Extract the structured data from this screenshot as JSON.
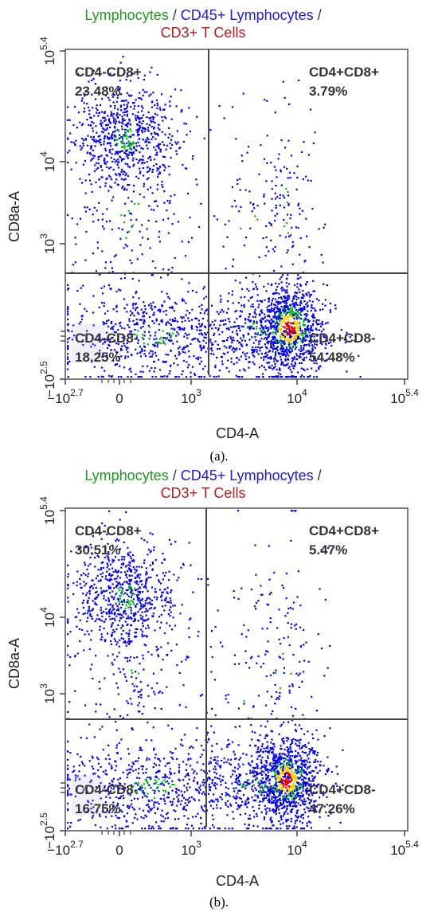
{
  "chart_data": [
    {
      "type": "scatter",
      "panel": "(a).",
      "title": {
        "line1": [
          {
            "text": "Lymphocytes",
            "color": "#1f9a1f"
          },
          {
            "text": " / ",
            "color": "#333333"
          },
          {
            "text": "CD45+ Lymphocytes",
            "color": "#1a1ae0"
          },
          {
            "text": " /",
            "color": "#333333"
          }
        ],
        "line2": [
          {
            "text": "CD3+ T Cells",
            "color": "#b51e1e"
          }
        ]
      },
      "xlabel": "CD4-A",
      "ylabel": "CD8a-A",
      "x_scale": "biexponential",
      "y_scale": "biexponential",
      "x_ticks": [
        "−10",
        "0",
        "10",
        "10",
        "10"
      ],
      "x_tick_exponents": [
        "2.7",
        "",
        "3",
        "4",
        "5.4"
      ],
      "y_ticks": [
        "−10",
        "10",
        "10",
        "10"
      ],
      "y_tick_exponents": [
        "2.5",
        "3",
        "4",
        "5.4"
      ],
      "quadrants": [
        {
          "name": "CD4-CD8+",
          "percent": "23.48%",
          "position": "top-left"
        },
        {
          "name": "CD4+CD8+",
          "percent": "3.79%",
          "position": "top-right"
        },
        {
          "name": "CD4-CD8-",
          "percent": "18.25%",
          "position": "bottom-left"
        },
        {
          "name": "CD4+CD8-",
          "percent": "54.48%",
          "position": "bottom-right"
        }
      ],
      "density_colors": [
        "#0000ee",
        "#00c000",
        "#ffcc00",
        "#e60000"
      ]
    },
    {
      "type": "scatter",
      "panel": "(b).",
      "title": {
        "line1": [
          {
            "text": "Lymphocytes",
            "color": "#1f9a1f"
          },
          {
            "text": " / ",
            "color": "#333333"
          },
          {
            "text": "CD45+ Lymphocytes",
            "color": "#1a1ae0"
          },
          {
            "text": " /",
            "color": "#333333"
          }
        ],
        "line2": [
          {
            "text": "CD3+ T Cells",
            "color": "#b51e1e"
          }
        ]
      },
      "xlabel": "CD4-A",
      "ylabel": "CD8a-A",
      "x_scale": "biexponential",
      "y_scale": "biexponential",
      "x_ticks": [
        "−10",
        "0",
        "10",
        "10",
        "10"
      ],
      "x_tick_exponents": [
        "2.7",
        "",
        "3",
        "4",
        "5.4"
      ],
      "y_ticks": [
        "−10",
        "10",
        "10",
        "10"
      ],
      "y_tick_exponents": [
        "2.5",
        "3",
        "4",
        "5.4"
      ],
      "quadrants": [
        {
          "name": "CD4-CD8+",
          "percent": "30.51%",
          "position": "top-left"
        },
        {
          "name": "CD4+CD8+",
          "percent": "5.47%",
          "position": "top-right"
        },
        {
          "name": "CD4-CD8-",
          "percent": "16.75%",
          "position": "bottom-left"
        },
        {
          "name": "CD4+CD8-",
          "percent": "47.26%",
          "position": "bottom-right"
        }
      ],
      "density_colors": [
        "#0000ee",
        "#00c000",
        "#ffcc00",
        "#e60000"
      ]
    }
  ]
}
